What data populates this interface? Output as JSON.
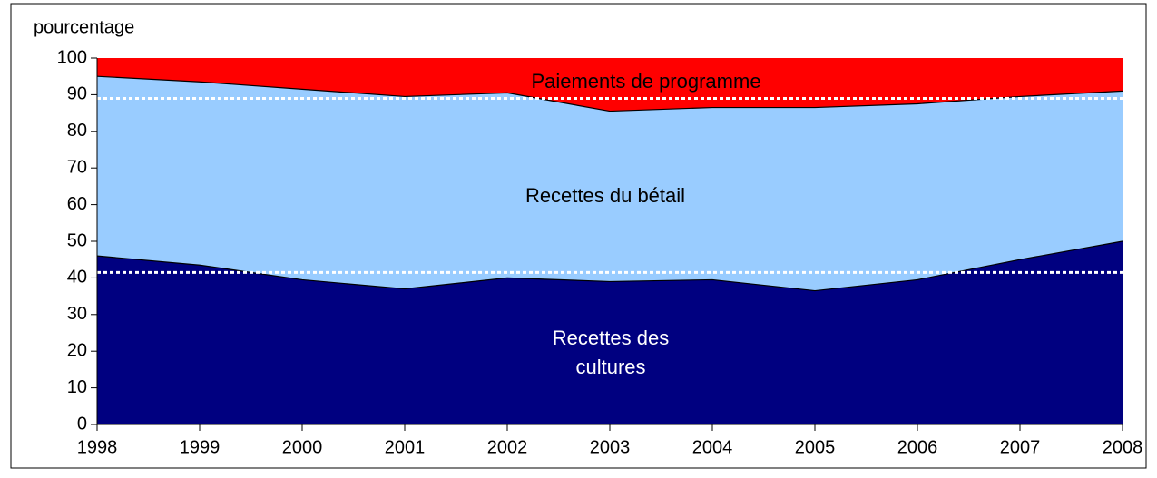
{
  "chart_data": {
    "type": "stacked_area",
    "y_axis_label": "pourcentage",
    "categories": [
      "1998",
      "1999",
      "2000",
      "2001",
      "2002",
      "2003",
      "2004",
      "2005",
      "2006",
      "2007",
      "2008"
    ],
    "series": [
      {
        "name": "Recettes des cultures",
        "color": "#000080",
        "label_color": "#ffffff",
        "values": [
          46,
          43.5,
          39.5,
          37,
          40,
          39,
          39.5,
          36.5,
          39.5,
          45,
          50
        ]
      },
      {
        "name": "Recettes du bétail",
        "color": "#99ccff",
        "label_color": "#000000",
        "values": [
          49,
          50,
          52,
          52.5,
          50.5,
          46.5,
          47,
          50,
          48,
          44.5,
          41
        ]
      },
      {
        "name": "Paiements de programme",
        "color": "#ff0000",
        "label_color": "#000000",
        "values": [
          5,
          6.5,
          8.5,
          10.5,
          9.5,
          14.5,
          13.5,
          13.5,
          12.5,
          10.5,
          9
        ]
      }
    ],
    "reference_lines": [
      {
        "value": 89
      },
      {
        "value": 41.5
      }
    ],
    "ylim": [
      0,
      100
    ],
    "yticks": [
      0,
      10,
      20,
      30,
      40,
      50,
      60,
      70,
      80,
      90,
      100
    ]
  }
}
